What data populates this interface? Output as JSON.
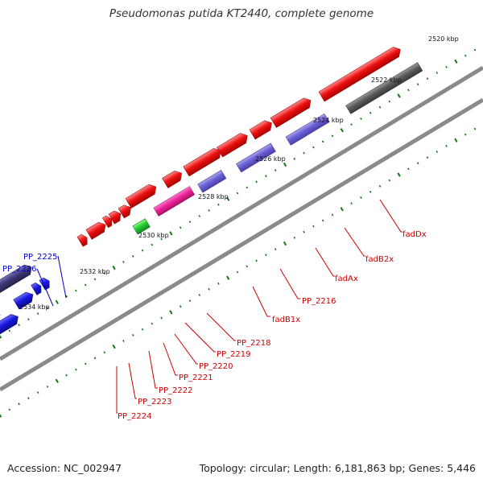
{
  "title": "Pseudomonas putida KT2440, complete genome",
  "footer": {
    "accession": "Accession: NC_002947",
    "summary": "Topology: circular; Length: 6,181,863 bp; Genes: 5,446"
  },
  "scale_labels": [
    "2520 kbp",
    "2522 kbp",
    "2524 kbp",
    "2526 kbp",
    "2528 kbp",
    "2530 kbp",
    "2532 kbp",
    "2534 kbp"
  ],
  "gene_labels": {
    "fadDx": "fadDx",
    "fadB2x": "fadB2x",
    "fadAx": "fadAx",
    "PP_2216": "PP_2216",
    "fadB1x": "fadB1x",
    "PP_2218": "PP_2218",
    "PP_2219": "PP_2219",
    "PP_2220": "PP_2220",
    "PP_2221": "PP_2221",
    "PP_2222": "PP_2222",
    "PP_2223": "PP_2223",
    "PP_2224": "PP_2224",
    "PP_2225": "PP_2225",
    "PP_2226": "PP_2226"
  },
  "colors": {
    "cds": "#ee1111",
    "rna": "#6a5fd4",
    "misc": "#ee2299",
    "other": "#22cc33",
    "cds_neg": "#1818dd",
    "rna_neg": "#3d3875",
    "teal": "#11cccc",
    "backbone": "#777777",
    "dark_track": "#5a5a5a",
    "tick": "#117711",
    "red_label": "#cc0000",
    "blue_label": "#0000cc"
  }
}
